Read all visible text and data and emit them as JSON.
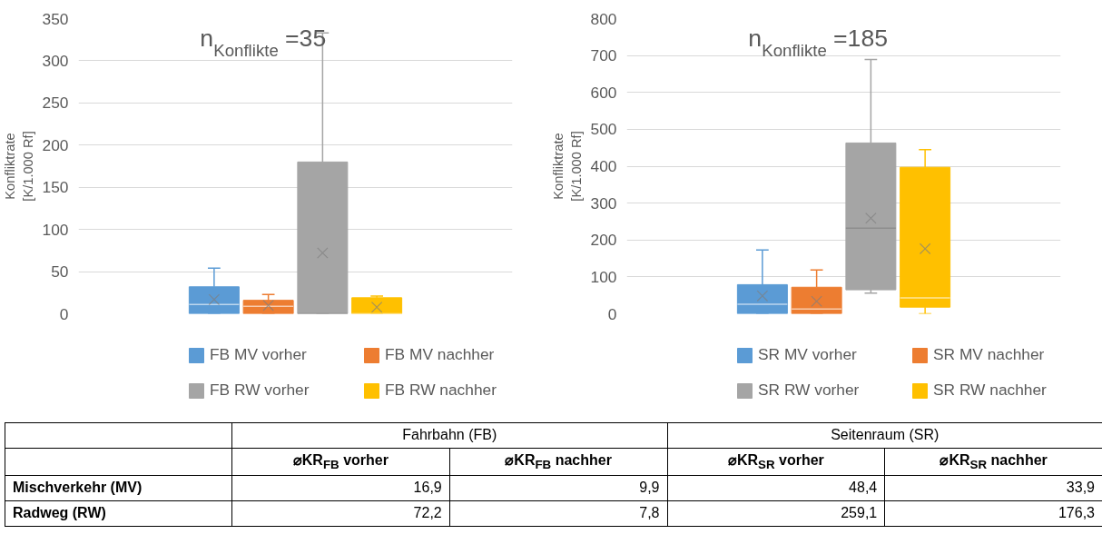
{
  "chart_data": [
    {
      "type": "box",
      "categories": [
        null
      ],
      "ylabel": "Konfliktrate\n[K/1.000 Rf]",
      "ylim": [
        0,
        350
      ],
      "yticks": [
        0,
        50,
        100,
        150,
        200,
        250,
        300,
        350
      ],
      "grid": "y",
      "legend": "bottom",
      "marker": "cross",
      "annotations": [
        "n$_{Konflikte}$=35"
      ],
      "series": [
        {
          "name": "FB MV vorher",
          "color": "#5b9bd5",
          "boxes": [
            {
              "low": 0,
              "q1": 0,
              "median": 11,
              "q3": 32,
              "high": 54,
              "mean": 16.9
            }
          ]
        },
        {
          "name": "FB MV nachher",
          "color": "#ed7d31",
          "boxes": [
            {
              "low": 0,
              "q1": 0,
              "median": 9,
              "q3": 16,
              "high": 23,
              "mean": 9.9
            }
          ]
        },
        {
          "name": "FB RW vorher",
          "color": "#a5a5a5",
          "boxes": [
            {
              "low": 0,
              "q1": 0,
              "median": 0,
              "q3": 180,
              "high": 333,
              "mean": 72.2
            }
          ]
        },
        {
          "name": "FB RW nachher",
          "color": "#ffc000",
          "boxes": [
            {
              "low": 0,
              "q1": 0,
              "median": 0,
              "q3": 19,
              "high": 21,
              "mean": 7.8
            }
          ]
        }
      ]
    },
    {
      "type": "box",
      "categories": [
        null
      ],
      "ylabel": "Konfliktrate\n[K/1.000 Rf]",
      "ylim": [
        0,
        800
      ],
      "yticks": [
        0,
        100,
        200,
        300,
        400,
        500,
        600,
        700,
        800
      ],
      "grid": "y",
      "legend": "bottom",
      "marker": "cross",
      "annotations": [
        "n$_{Konflikte}$=185"
      ],
      "series": [
        {
          "name": "SR MV vorher",
          "color": "#5b9bd5",
          "boxes": [
            {
              "low": 0,
              "q1": 0,
              "median": 26,
              "q3": 79,
              "high": 173,
              "mean": 48.4
            }
          ]
        },
        {
          "name": "SR MV nachher",
          "color": "#ed7d31",
          "boxes": [
            {
              "low": 0,
              "q1": 0,
              "median": 13,
              "q3": 72,
              "high": 119,
              "mean": 33.9
            }
          ]
        },
        {
          "name": "SR RW vorher",
          "color": "#a5a5a5",
          "boxes": [
            {
              "low": 56,
              "q1": 65,
              "median": 232,
              "q3": 463,
              "high": 689,
              "mean": 259.1
            }
          ]
        },
        {
          "name": "SR RW nachher",
          "color": "#ffc000",
          "boxes": [
            {
              "low": 0,
              "q1": 18,
              "median": 43,
              "q3": 397,
              "high": 445,
              "mean": 176.3
            }
          ]
        }
      ]
    },
    {
      "type": "other",
      "annotations": [
        "Fahrbahn (FB)",
        "Seitenraum (SR)"
      ],
      "categories": [
        "⌀KR$_{FB}$ vorher",
        "⌀KR$_{FB}$ nachher",
        "⌀KR$_{SR}$ vorher",
        "⌀KR$_{SR}$ nachher"
      ],
      "y_categories": [
        "Mischverkehr (MV)",
        "Radweg (RW)"
      ],
      "cell_labels": [
        [
          "16,9",
          "9,9",
          "48,4",
          "33,9"
        ],
        [
          "72,2",
          "7,8",
          "259,1",
          "176,3"
        ]
      ]
    }
  ]
}
